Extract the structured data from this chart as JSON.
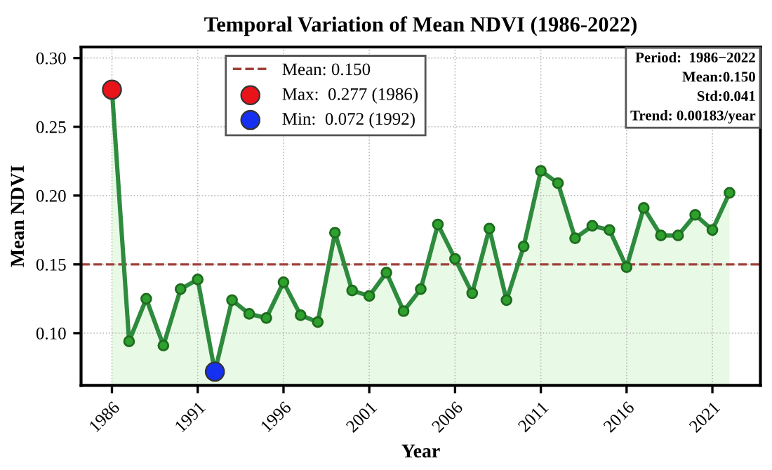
{
  "chart_data": {
    "type": "area",
    "title": "Temporal Variation of Mean NDVI (1986-2022)",
    "xlabel": "Year",
    "ylabel": "Mean NDVI",
    "x": [
      1986,
      1987,
      1988,
      1989,
      1990,
      1991,
      1992,
      1993,
      1994,
      1995,
      1996,
      1997,
      1998,
      1999,
      2000,
      2001,
      2002,
      2003,
      2004,
      2005,
      2006,
      2007,
      2008,
      2009,
      2010,
      2011,
      2012,
      2013,
      2014,
      2015,
      2016,
      2017,
      2018,
      2019,
      2020,
      2021,
      2022
    ],
    "series": [
      {
        "color": "#2e8b3e",
        "values": [
          0.277,
          0.094,
          0.125,
          0.091,
          0.132,
          0.139,
          0.072,
          0.124,
          0.114,
          0.111,
          0.137,
          0.113,
          0.108,
          0.173,
          0.131,
          0.127,
          0.144,
          0.116,
          0.132,
          0.179,
          0.154,
          0.129,
          0.176,
          0.124,
          0.163,
          0.218,
          0.209,
          0.169,
          0.178,
          0.175,
          0.148,
          0.191,
          0.171,
          0.171,
          0.186,
          0.175,
          0.202
        ]
      },
      {
        "type": "scatter",
        "name": "Max:  0.277 (1986)",
        "color": "#e8141a",
        "x": [
          1986
        ],
        "values": [
          0.277
        ]
      },
      {
        "type": "scatter",
        "name": "Min:  0.072 (1992)",
        "color": "#1530f0",
        "x": [
          1992
        ],
        "values": [
          0.072
        ]
      }
    ],
    "ref_lines": [
      {
        "axis": "y",
        "value": 0.15,
        "label": "Mean: 0.150",
        "color": "#a0403a",
        "line_style": "dashed"
      }
    ],
    "annotations": [
      "Period:  1986−2022\nMean:0.150\nStd:0.041\nTrend: 0.00183/year"
    ],
    "xlim": [
      1984.2,
      2023.8
    ],
    "xticks": [
      1986,
      1991,
      1996,
      2001,
      2006,
      2011,
      2016,
      2021
    ],
    "ylim": [
      0.062,
      0.308
    ],
    "yticks": [
      {
        "value": 0.1,
        "label": "0.10"
      },
      {
        "value": 0.15,
        "label": "0.15"
      },
      {
        "value": 0.2,
        "label": "0.20"
      },
      {
        "value": 0.25,
        "label": "0.25"
      },
      {
        "value": 0.3,
        "label": "0.30"
      }
    ],
    "grid": true,
    "legend": "top",
    "line_style": "solid",
    "marker": "circle"
  }
}
